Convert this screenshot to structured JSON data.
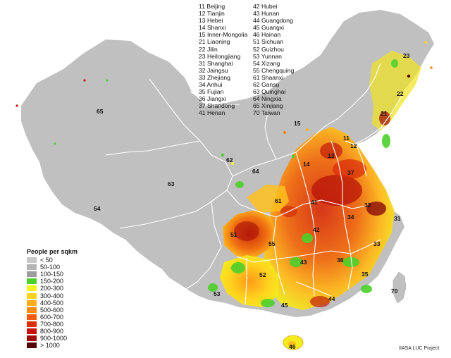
{
  "province_codes": {
    "column_1": [
      "11 Beijing",
      "12 Tianjin",
      "13 Hebei",
      "14 Shanxi",
      "15 Inner-Mongolia",
      "21 Liaoning",
      "22 Jilin",
      "23 Heilongjiang",
      "31 Shanghai",
      "32 Jaingsu",
      "33 Zhejiang",
      "34 Anhui",
      "35 Fujian",
      "36 Jiangxi",
      "37 Shandong",
      "41 Henan"
    ],
    "column_2": [
      "42 Hubei",
      "43 Hunan",
      "44 Guangdong",
      "45 Guangxi",
      "46 Hainan",
      "51 Sichuan",
      "52 Guizhou",
      "53 Yunnan",
      "54 Xizang",
      "55 Chengquing",
      "61 Shaanxi",
      "62 Gansu",
      "63 Quinghai",
      "64 Ningxia",
      "65 Xinjiang",
      "70 Taiwan"
    ]
  },
  "map_labels": [
    "65",
    "54",
    "63",
    "62",
    "64",
    "15",
    "23",
    "22",
    "21",
    "11",
    "12",
    "13",
    "14",
    "37",
    "41",
    "61",
    "31",
    "32",
    "34",
    "42",
    "51",
    "55",
    "33",
    "43",
    "36",
    "52",
    "35",
    "53",
    "45",
    "44",
    "46",
    "70"
  ],
  "legend": {
    "title": "People per sqkm",
    "items": [
      {
        "label": "< 50",
        "color": "#c8c8c8"
      },
      {
        "label": "50-100",
        "color": "#b4b4b4"
      },
      {
        "label": "100-150",
        "color": "#9c9c9c"
      },
      {
        "label": "150-200",
        "color": "#4cd02a"
      },
      {
        "label": "200-300",
        "color": "#f5f51a"
      },
      {
        "label": "300-400",
        "color": "#ffd21e"
      },
      {
        "label": "400-500",
        "color": "#ffae1a"
      },
      {
        "label": "500-600",
        "color": "#ff8a12"
      },
      {
        "label": "600-700",
        "color": "#f45a0c"
      },
      {
        "label": "700-800",
        "color": "#e0300a"
      },
      {
        "label": "800-900",
        "color": "#c81208"
      },
      {
        "label": "900-1000",
        "color": "#a00808"
      },
      {
        "label": "> 1000",
        "color": "#550404"
      }
    ]
  },
  "credit": "IIASA LUC Project",
  "colors": {
    "land": "#c0c0c0",
    "border": "#ffffff"
  }
}
